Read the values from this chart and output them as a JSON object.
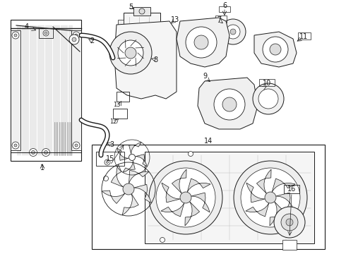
{
  "bg_color": "#ffffff",
  "line_color": "#1a1a1a",
  "fig_width": 4.9,
  "fig_height": 3.6,
  "dpi": 100,
  "label_fs": 7,
  "small_fs": 6.5
}
